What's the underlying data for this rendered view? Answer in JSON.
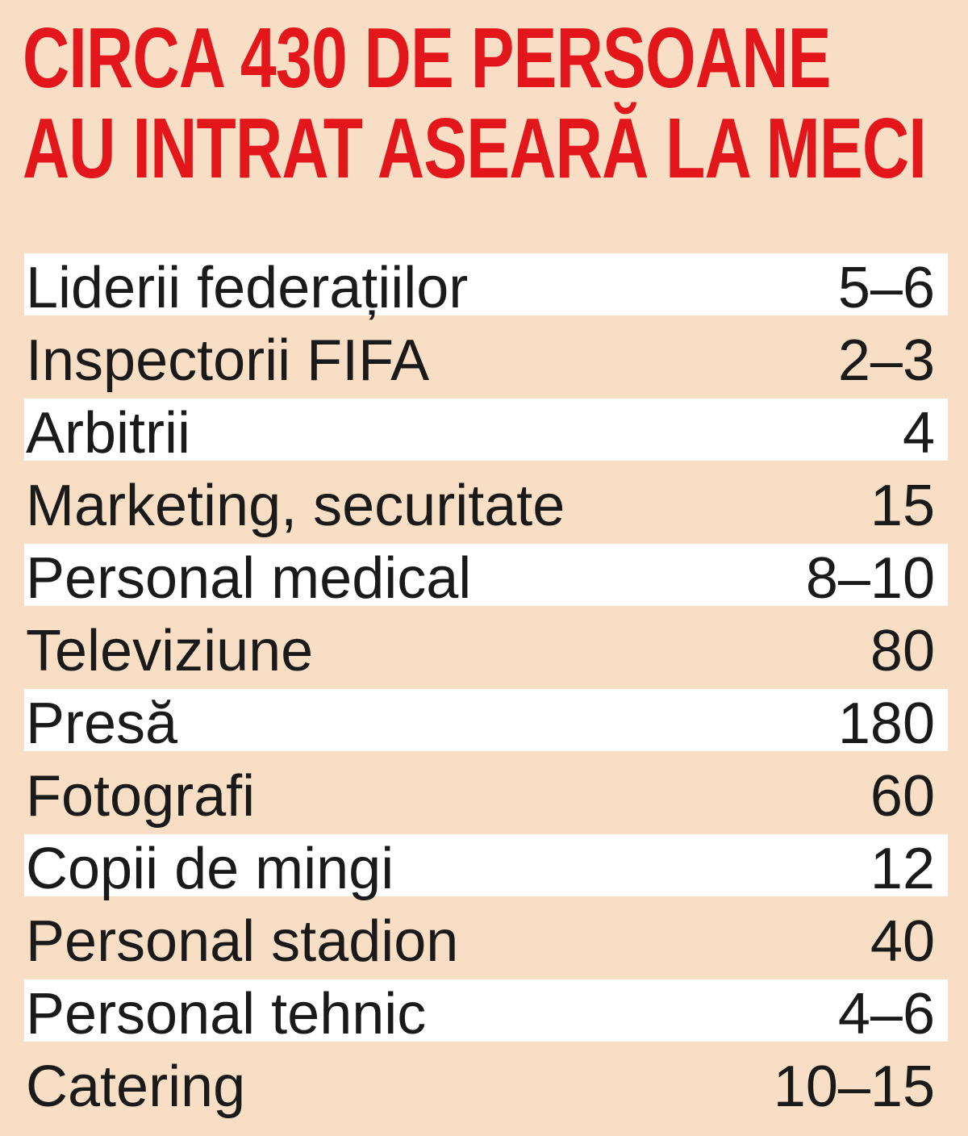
{
  "title": {
    "line1": "CIRCA 430 DE PERSOANE",
    "line2": "AU INTRAT ASEARĂ LA MECI",
    "color": "#e3161c"
  },
  "background_color": "#f7dec4",
  "stripe_color": "#ffffff",
  "rows": [
    {
      "label": "Liderii federațiilor",
      "value": "5–6"
    },
    {
      "label": "Inspectorii FIFA",
      "value": "2–3"
    },
    {
      "label": "Arbitrii",
      "value": "4"
    },
    {
      "label": "Marketing, securitate",
      "value": "15"
    },
    {
      "label": "Personal medical",
      "value": "8–10"
    },
    {
      "label": "Televiziune",
      "value": "80"
    },
    {
      "label": "Presă",
      "value": "180"
    },
    {
      "label": "Fotografi",
      "value": "60"
    },
    {
      "label": "Copii de mingi",
      "value": "12"
    },
    {
      "label": "Personal stadion",
      "value": "40"
    },
    {
      "label": "Personal tehnic",
      "value": "4–6"
    },
    {
      "label": "Catering",
      "value": "10–15"
    }
  ]
}
